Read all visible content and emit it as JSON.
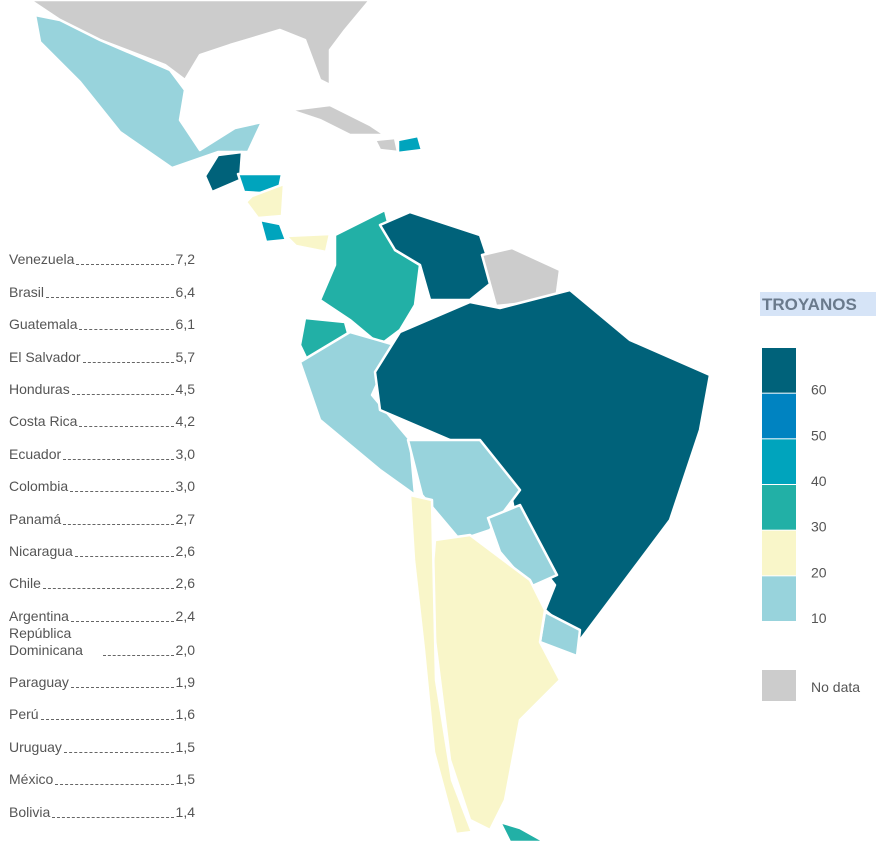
{
  "ranking": [
    {
      "country": "Venezuela",
      "value": "7,2"
    },
    {
      "country": "Brasil",
      "value": "6,4"
    },
    {
      "country": "Guatemala",
      "value": "6,1"
    },
    {
      "country": "El Salvador",
      "value": "5,7"
    },
    {
      "country": "Honduras",
      "value": "4,5"
    },
    {
      "country": "Costa Rica",
      "value": "4,2"
    },
    {
      "country": "Ecuador",
      "value": "3,0"
    },
    {
      "country": "Colombia",
      "value": "3,0"
    },
    {
      "country": "Panamá",
      "value": "2,7"
    },
    {
      "country": "Nicaragua",
      "value": "2,6"
    },
    {
      "country": "Chile",
      "value": "2,6"
    },
    {
      "country": "Argentina",
      "value": "2,4"
    },
    {
      "country": "República Dominicana",
      "value": "2,0"
    },
    {
      "country": "Paraguay",
      "value": "1,9"
    },
    {
      "country": "Perú",
      "value": "1,6"
    },
    {
      "country": "Uruguay",
      "value": "1,5"
    },
    {
      "country": "México",
      "value": "1,5"
    },
    {
      "country": "Bolivia",
      "value": "1,4"
    }
  ],
  "legend": {
    "title": "TROYANOS",
    "colors": [
      "#00627a",
      "#0083c1",
      "#00a4bd",
      "#22b0a6",
      "#f9f6c9",
      "#98d3dc"
    ],
    "ticks": [
      60,
      50,
      40,
      30,
      20,
      10
    ],
    "range": [
      10,
      70
    ],
    "no_data": {
      "label": "No data",
      "color": "#cccccc"
    }
  }
}
